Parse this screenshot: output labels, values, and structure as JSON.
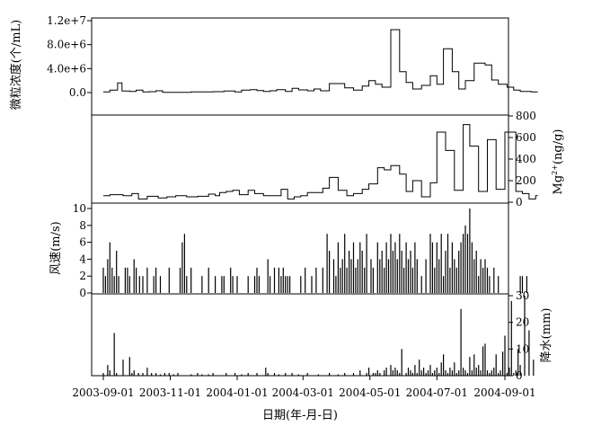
{
  "chart_data": [
    {
      "type": "line",
      "panel": "particle",
      "ylabel": "微粒浓度(个/mL)",
      "yticks": [
        "1.2e+7",
        "8.0e+6",
        "4.0e+6",
        "0.0"
      ],
      "ylim": [
        0,
        12000000
      ],
      "steps": [
        [
          0,
          0.1
        ],
        [
          6,
          0.4
        ],
        [
          13,
          1.6
        ],
        [
          17,
          0.25
        ],
        [
          24,
          0.2
        ],
        [
          30,
          0.4
        ],
        [
          36,
          0.1
        ],
        [
          42,
          0.15
        ],
        [
          48,
          0.3
        ],
        [
          54,
          0.05
        ],
        [
          80,
          0.1
        ],
        [
          100,
          0.15
        ],
        [
          110,
          0.25
        ],
        [
          120,
          0.1
        ],
        [
          126,
          0.4
        ],
        [
          134,
          0.5
        ],
        [
          140,
          0.35
        ],
        [
          146,
          0.2
        ],
        [
          152,
          0.3
        ],
        [
          158,
          0.5
        ],
        [
          166,
          0.2
        ],
        [
          172,
          0.7
        ],
        [
          178,
          0.45
        ],
        [
          186,
          0.3
        ],
        [
          192,
          0.6
        ],
        [
          198,
          0.3
        ],
        [
          206,
          1.5
        ],
        [
          220,
          0.8
        ],
        [
          228,
          0.4
        ],
        [
          236,
          1.1
        ],
        [
          242,
          2.0
        ],
        [
          248,
          1.4
        ],
        [
          254,
          0.9
        ],
        [
          262,
          10.5
        ],
        [
          270,
          3.5
        ],
        [
          276,
          1.7
        ],
        [
          282,
          0.6
        ],
        [
          290,
          1.2
        ],
        [
          298,
          2.8
        ],
        [
          304,
          1.4
        ],
        [
          310,
          7.3
        ],
        [
          318,
          3.5
        ],
        [
          324,
          0.6
        ],
        [
          330,
          2.0
        ],
        [
          338,
          4.9
        ],
        [
          348,
          4.6
        ],
        [
          354,
          2.1
        ],
        [
          360,
          1.4
        ],
        [
          368,
          0.9
        ],
        [
          374,
          0.4
        ],
        [
          380,
          0.2
        ],
        [
          390,
          0.1
        ]
      ],
      "x_end": 396
    },
    {
      "type": "line",
      "panel": "mg",
      "ylabel": "Mg2+(ng/g)",
      "ylabel_base": "Mg",
      "ylabel_sup": "2+",
      "ylabel_unit": "(ng/g)",
      "yticks": [
        "800",
        "600",
        "400",
        "200",
        "0"
      ],
      "ylim": [
        0,
        800
      ],
      "steps": [
        [
          0,
          60
        ],
        [
          6,
          70
        ],
        [
          18,
          60
        ],
        [
          26,
          80
        ],
        [
          32,
          30
        ],
        [
          40,
          55
        ],
        [
          50,
          40
        ],
        [
          58,
          50
        ],
        [
          66,
          60
        ],
        [
          76,
          50
        ],
        [
          86,
          55
        ],
        [
          96,
          75
        ],
        [
          102,
          60
        ],
        [
          106,
          90
        ],
        [
          112,
          100
        ],
        [
          118,
          110
        ],
        [
          124,
          70
        ],
        [
          132,
          110
        ],
        [
          138,
          80
        ],
        [
          146,
          60
        ],
        [
          156,
          60
        ],
        [
          162,
          120
        ],
        [
          168,
          30
        ],
        [
          174,
          50
        ],
        [
          180,
          60
        ],
        [
          186,
          90
        ],
        [
          194,
          90
        ],
        [
          200,
          130
        ],
        [
          206,
          230
        ],
        [
          214,
          110
        ],
        [
          222,
          60
        ],
        [
          228,
          80
        ],
        [
          236,
          120
        ],
        [
          242,
          170
        ],
        [
          250,
          320
        ],
        [
          256,
          300
        ],
        [
          262,
          340
        ],
        [
          270,
          260
        ],
        [
          276,
          100
        ],
        [
          282,
          200
        ],
        [
          290,
          50
        ],
        [
          298,
          180
        ],
        [
          304,
          650
        ],
        [
          312,
          480
        ],
        [
          320,
          110
        ],
        [
          328,
          720
        ],
        [
          334,
          520
        ],
        [
          342,
          100
        ],
        [
          350,
          580
        ],
        [
          358,
          120
        ],
        [
          366,
          650
        ],
        [
          376,
          100
        ],
        [
          382,
          80
        ],
        [
          388,
          30
        ],
        [
          394,
          60
        ]
      ],
      "x_end": 396
    },
    {
      "type": "bar",
      "panel": "wind",
      "ylabel": "风速(m/s)",
      "yticks": [
        "10",
        "8",
        "6",
        "4",
        "2",
        "0"
      ],
      "ylim": [
        0,
        10
      ],
      "x": [
        0,
        2,
        4,
        6,
        8,
        10,
        12,
        14,
        20,
        22,
        24,
        28,
        30,
        33,
        36,
        40,
        46,
        48,
        52,
        60,
        70,
        72,
        74,
        76,
        80,
        90,
        96,
        102,
        108,
        110,
        116,
        118,
        122,
        132,
        138,
        140,
        142,
        150,
        152,
        156,
        160,
        162,
        164,
        166,
        168,
        170,
        180,
        184,
        190,
        194,
        200,
        204,
        206,
        210,
        212,
        214,
        216,
        218,
        220,
        222,
        224,
        226,
        228,
        230,
        232,
        234,
        236,
        238,
        240,
        244,
        246,
        250,
        252,
        254,
        256,
        258,
        260,
        262,
        264,
        266,
        268,
        270,
        272,
        274,
        276,
        278,
        280,
        282,
        284,
        286,
        290,
        294,
        298,
        300,
        302,
        304,
        306,
        308,
        310,
        312,
        314,
        316,
        318,
        320,
        322,
        324,
        326,
        328,
        330,
        332,
        334,
        336,
        338,
        340,
        342,
        344,
        346,
        348,
        350,
        352,
        356,
        360,
        380,
        382,
        386
      ],
      "values": [
        3,
        2,
        4,
        6,
        3,
        2,
        5,
        2,
        3,
        3,
        2,
        4,
        3,
        2,
        2,
        3,
        2,
        3,
        2,
        3,
        3,
        6,
        7,
        2,
        3,
        2,
        3,
        2,
        2,
        2,
        3,
        2,
        2,
        2,
        2,
        3,
        2,
        4,
        2,
        3,
        3,
        2,
        3,
        2,
        2,
        2,
        2,
        3,
        2,
        3,
        3,
        7,
        5,
        4,
        2,
        6,
        3,
        4,
        7,
        3,
        5,
        4,
        6,
        3,
        4,
        6,
        5,
        3,
        7,
        4,
        3,
        6,
        4,
        5,
        3,
        6,
        4,
        7,
        5,
        6,
        4,
        7,
        5,
        3,
        6,
        4,
        5,
        3,
        6,
        4,
        2,
        4,
        7,
        6,
        3,
        6,
        4,
        7,
        2,
        5,
        7,
        3,
        6,
        4,
        3,
        5,
        6,
        7,
        8,
        7,
        10,
        6,
        4,
        5,
        2,
        4,
        3,
        4,
        3,
        2,
        3,
        2,
        2,
        2,
        2
      ]
    },
    {
      "type": "bar",
      "panel": "precip",
      "ylabel": "降水(mm)",
      "yticks": [
        "30",
        "20",
        "10",
        "0"
      ],
      "ylim": [
        0,
        30
      ],
      "x": [
        0,
        4,
        6,
        10,
        12,
        18,
        24,
        26,
        28,
        32,
        36,
        40,
        44,
        48,
        52,
        56,
        60,
        64,
        68,
        80,
        86,
        90,
        96,
        100,
        112,
        120,
        126,
        132,
        140,
        148,
        150,
        156,
        160,
        166,
        172,
        178,
        186,
        196,
        206,
        214,
        220,
        228,
        234,
        240,
        242,
        246,
        248,
        250,
        252,
        256,
        258,
        262,
        264,
        266,
        268,
        270,
        272,
        276,
        278,
        280,
        282,
        284,
        286,
        288,
        290,
        292,
        294,
        296,
        298,
        300,
        302,
        304,
        306,
        308,
        310,
        312,
        314,
        316,
        318,
        320,
        322,
        324,
        326,
        328,
        330,
        332,
        334,
        336,
        338,
        340,
        342,
        344,
        346,
        348,
        350,
        352,
        354,
        356,
        358,
        360,
        362,
        364,
        366,
        368,
        370,
        372,
        374,
        376,
        378,
        380,
        384,
        388,
        392
      ],
      "values": [
        1,
        4,
        2,
        16,
        1,
        6,
        7,
        1,
        2,
        1,
        1,
        3,
        1,
        1,
        0.5,
        1,
        1,
        0.5,
        1,
        0.5,
        1,
        0.5,
        0.5,
        1,
        1,
        1,
        0.5,
        1,
        1,
        3,
        1,
        1,
        0.5,
        1,
        1,
        0.5,
        1,
        0.5,
        1,
        0.5,
        1,
        1,
        2,
        1,
        3,
        1,
        1,
        2,
        1,
        2,
        3,
        4,
        2,
        3,
        2,
        1,
        10,
        1,
        3,
        2,
        1,
        4,
        1,
        6,
        2,
        3,
        1,
        2,
        4,
        1,
        2,
        3,
        1,
        5,
        8,
        2,
        1,
        3,
        2,
        5,
        1,
        2,
        25,
        3,
        2,
        1,
        7,
        2,
        8,
        3,
        4,
        2,
        11,
        12,
        2,
        1,
        2,
        3,
        8,
        1,
        2,
        9,
        15,
        1,
        3,
        28,
        1,
        2,
        10,
        4,
        30,
        17,
        6
      ]
    }
  ],
  "xaxis": {
    "label": "日期(年-月-日)",
    "ticks": [
      "2003-09-01",
      "2003-11-01",
      "2004-01-01",
      "2004-03-01",
      "2004-05-01",
      "2004-07-01",
      "2004-09-01"
    ],
    "tick_days": [
      0,
      61,
      122,
      182,
      243,
      304,
      366
    ]
  }
}
